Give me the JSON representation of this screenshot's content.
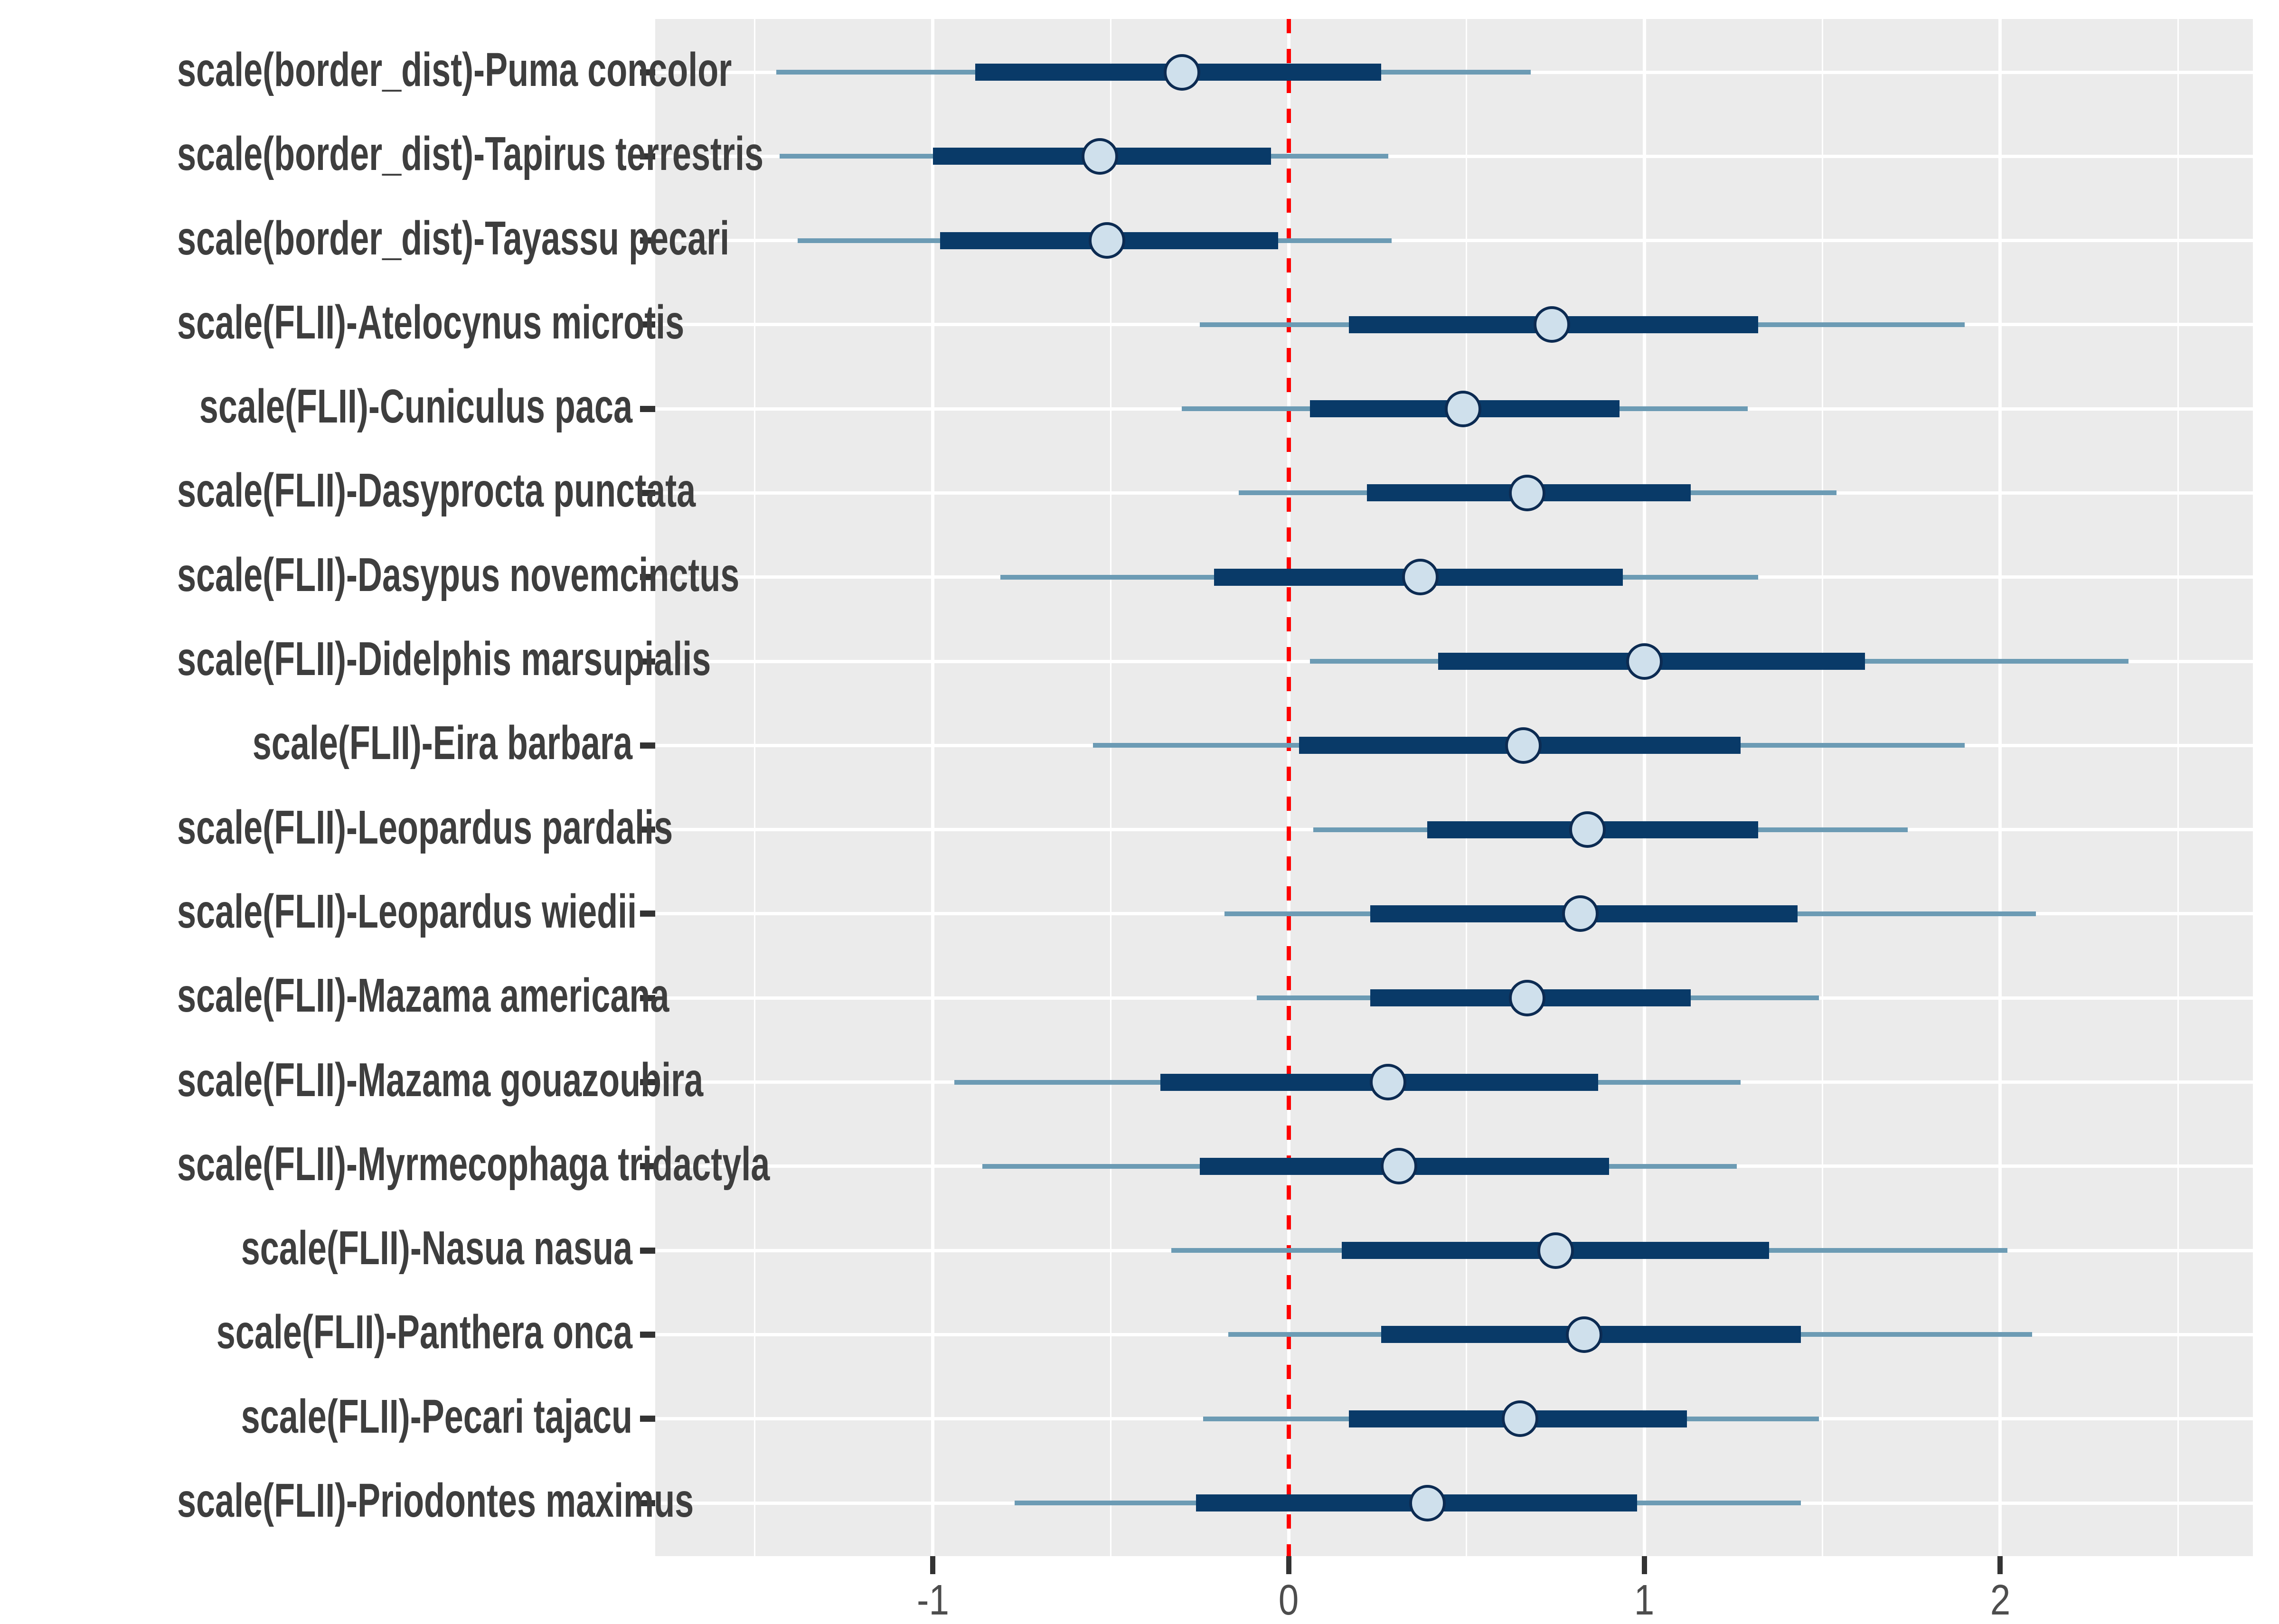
{
  "figure": {
    "title": "",
    "background_color": "#FFFFFF"
  },
  "style": {
    "panel_bg": "#EBEBEB",
    "grid_color": "#FFFFFF",
    "inner_bar_color": "#093A68",
    "outer_line_color": "#6C9BB4",
    "point_fill": "#CFE0EC",
    "point_stroke": "#0C2B52",
    "reference_line_color": "#FF0000",
    "axis_tick_color": "#333333",
    "x_tick_label_color": "#4D4D4D",
    "y_label_color": "#3E3E3E"
  },
  "chart_data": {
    "type": "scatter",
    "subtype": "forest-interval-plot",
    "title": "",
    "xlabel": "",
    "ylabel": "",
    "xlim": [
      -1.78,
      2.71
    ],
    "x_ticks": [
      -1,
      0,
      1,
      2
    ],
    "x_tick_labels": [
      "-1",
      "0",
      "1",
      "2"
    ],
    "x_minor_ticks": [
      -1.5,
      -0.5,
      0.5,
      1.5,
      2.5
    ],
    "grid": "major-and-minor-white-on-gray",
    "legend": "none",
    "reference_line": {
      "x": 0,
      "style": "dashed",
      "color": "#FF0000"
    },
    "rows": [
      {
        "label": "scale(border_dist)-Puma concolor",
        "estimate": -0.3,
        "inner": [
          -0.88,
          0.26
        ],
        "outer": [
          -1.44,
          0.68
        ]
      },
      {
        "label": "scale(border_dist)-Tapirus terrestris",
        "estimate": -0.53,
        "inner": [
          -1.0,
          -0.05
        ],
        "outer": [
          -1.43,
          0.28
        ]
      },
      {
        "label": "scale(border_dist)-Tayassu pecari",
        "estimate": -0.51,
        "inner": [
          -0.98,
          -0.03
        ],
        "outer": [
          -1.38,
          0.29
        ]
      },
      {
        "label": "scale(FLII)-Atelocynus microtis",
        "estimate": 0.74,
        "inner": [
          0.17,
          1.32
        ],
        "outer": [
          -0.25,
          1.9
        ]
      },
      {
        "label": "scale(FLII)-Cuniculus paca",
        "estimate": 0.49,
        "inner": [
          0.06,
          0.93
        ],
        "outer": [
          -0.3,
          1.29
        ]
      },
      {
        "label": "scale(FLII)-Dasyprocta punctata",
        "estimate": 0.67,
        "inner": [
          0.22,
          1.13
        ],
        "outer": [
          -0.14,
          1.54
        ]
      },
      {
        "label": "scale(FLII)-Dasypus novemcinctus",
        "estimate": 0.37,
        "inner": [
          -0.21,
          0.94
        ],
        "outer": [
          -0.81,
          1.32
        ]
      },
      {
        "label": "scale(FLII)-Didelphis marsupialis",
        "estimate": 1.0,
        "inner": [
          0.42,
          1.62
        ],
        "outer": [
          0.06,
          2.36
        ]
      },
      {
        "label": "scale(FLII)-Eira barbara",
        "estimate": 0.66,
        "inner": [
          0.03,
          1.27
        ],
        "outer": [
          -0.55,
          1.9
        ]
      },
      {
        "label": "scale(FLII)-Leopardus pardalis",
        "estimate": 0.84,
        "inner": [
          0.39,
          1.32
        ],
        "outer": [
          0.07,
          1.74
        ]
      },
      {
        "label": "scale(FLII)-Leopardus wiedii",
        "estimate": 0.82,
        "inner": [
          0.23,
          1.43
        ],
        "outer": [
          -0.18,
          2.1
        ]
      },
      {
        "label": "scale(FLII)-Mazama americana",
        "estimate": 0.67,
        "inner": [
          0.23,
          1.13
        ],
        "outer": [
          -0.09,
          1.49
        ]
      },
      {
        "label": "scale(FLII)-Mazama gouazoubira",
        "estimate": 0.28,
        "inner": [
          -0.36,
          0.87
        ],
        "outer": [
          -0.94,
          1.27
        ]
      },
      {
        "label": "scale(FLII)-Myrmecophaga tridactyla",
        "estimate": 0.31,
        "inner": [
          -0.25,
          0.9
        ],
        "outer": [
          -0.86,
          1.26
        ]
      },
      {
        "label": "scale(FLII)-Nasua nasua",
        "estimate": 0.75,
        "inner": [
          0.15,
          1.35
        ],
        "outer": [
          -0.33,
          2.02
        ]
      },
      {
        "label": "scale(FLII)-Panthera onca",
        "estimate": 0.83,
        "inner": [
          0.26,
          1.44
        ],
        "outer": [
          -0.17,
          2.09
        ]
      },
      {
        "label": "scale(FLII)-Pecari tajacu",
        "estimate": 0.65,
        "inner": [
          0.17,
          1.12
        ],
        "outer": [
          -0.24,
          1.49
        ]
      },
      {
        "label": "scale(FLII)-Priodontes maximus",
        "estimate": 0.39,
        "inner": [
          -0.26,
          0.98
        ],
        "outer": [
          -0.77,
          1.44
        ]
      }
    ]
  }
}
